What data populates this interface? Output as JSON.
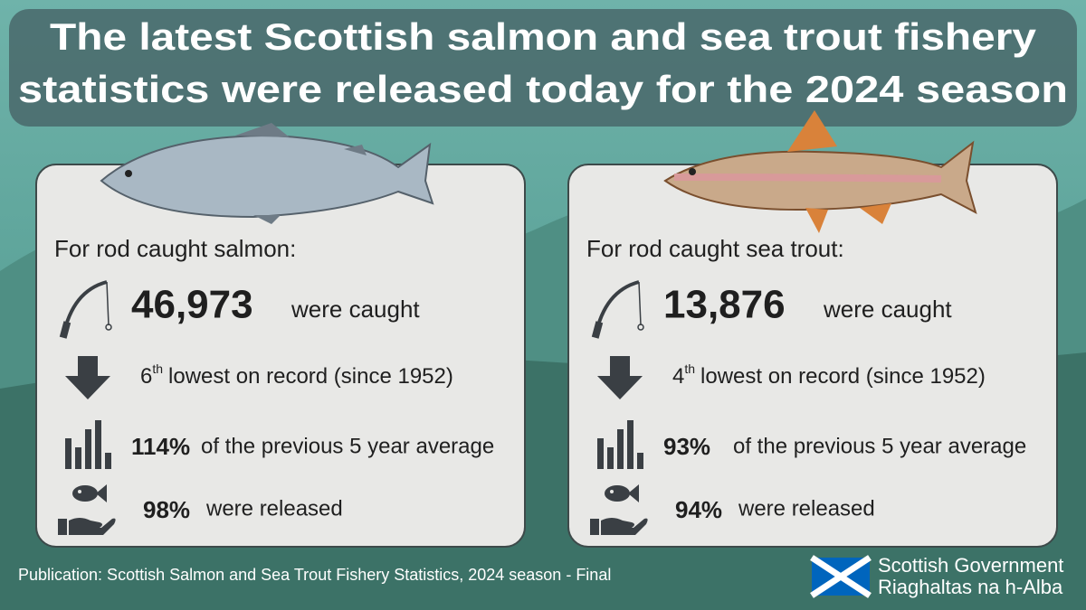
{
  "header": {
    "title_lines": [
      "The latest Scottish salmon and sea trout fishery",
      "statistics were released today for the 2024 season"
    ]
  },
  "panels": [
    {
      "heading": "For rod caught salmon:",
      "caught": {
        "number": "46,973",
        "text": "were caught"
      },
      "rank": {
        "ordinal": "6",
        "suffix": "th",
        "text": "lowest on record (since 1952)"
      },
      "average": {
        "number": "114%",
        "text": "of the previous 5 year average"
      },
      "released": {
        "number": "98%",
        "text": "were released"
      }
    },
    {
      "heading": "For rod caught sea trout:",
      "caught": {
        "number": "13,876",
        "text": "were caught"
      },
      "rank": {
        "ordinal": "4",
        "suffix": "th",
        "text": "lowest on record (since 1952)"
      },
      "average": {
        "number": "93%",
        "text": "of the previous 5 year average"
      },
      "released": {
        "number": "94%",
        "text": "were released"
      }
    }
  ],
  "footer": {
    "publication": "Publication: Scottish Salmon and Sea Trout Fishery Statistics, 2024 season - Final",
    "logo_lines": [
      "Scottish Government",
      "Riaghaltas na h-Alba"
    ]
  }
}
